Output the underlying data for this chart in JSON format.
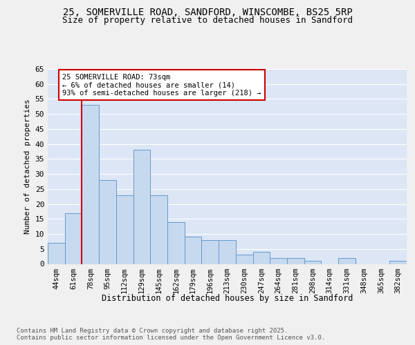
{
  "title1": "25, SOMERVILLE ROAD, SANDFORD, WINSCOMBE, BS25 5RP",
  "title2": "Size of property relative to detached houses in Sandford",
  "xlabel": "Distribution of detached houses by size in Sandford",
  "ylabel": "Number of detached properties",
  "categories": [
    "44sqm",
    "61sqm",
    "78sqm",
    "95sqm",
    "112sqm",
    "129sqm",
    "145sqm",
    "162sqm",
    "179sqm",
    "196sqm",
    "213sqm",
    "230sqm",
    "247sqm",
    "264sqm",
    "281sqm",
    "298sqm",
    "314sqm",
    "331sqm",
    "348sqm",
    "365sqm",
    "382sqm"
  ],
  "values": [
    7,
    17,
    53,
    28,
    23,
    38,
    23,
    14,
    9,
    8,
    8,
    3,
    4,
    2,
    2,
    1,
    0,
    2,
    0,
    0,
    1
  ],
  "bar_color": "#c6d9ee",
  "bar_edge_color": "#6699cc",
  "plot_bg_color": "#dce6f5",
  "fig_bg_color": "#f0f0f0",
  "grid_color": "#ffffff",
  "annotation_text": "25 SOMERVILLE ROAD: 73sqm\n← 6% of detached houses are smaller (14)\n93% of semi-detached houses are larger (218) →",
  "annotation_fg": "#000000",
  "annotation_bg": "#ffffff",
  "annotation_edge": "#cc0000",
  "vline_color": "#cc0000",
  "vline_x": 2.0,
  "ylim_max": 65,
  "yticks": [
    0,
    5,
    10,
    15,
    20,
    25,
    30,
    35,
    40,
    45,
    50,
    55,
    60,
    65
  ],
  "footer_text": "Contains HM Land Registry data © Crown copyright and database right 2025.\nContains public sector information licensed under the Open Government Licence v3.0."
}
